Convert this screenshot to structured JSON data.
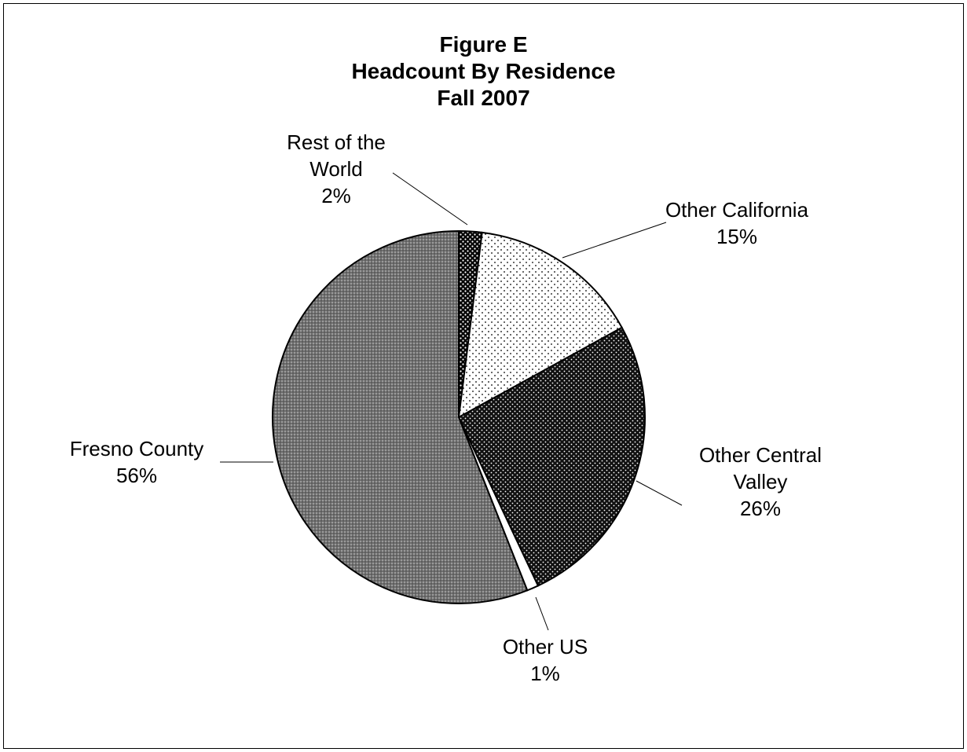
{
  "chart_data": {
    "type": "pie",
    "title": [
      "Figure E",
      "Headcount By Residence",
      "Fall 2007"
    ],
    "slices": [
      {
        "label": [
          "Rest of the",
          "World"
        ],
        "value_label": "2%",
        "value": 2,
        "pattern": "dots-on-black"
      },
      {
        "label": [
          "Other California"
        ],
        "value_label": "15%",
        "value": 15,
        "pattern": "sparse-dots"
      },
      {
        "label": [
          "Other Central",
          "Valley"
        ],
        "value_label": "26%",
        "value": 26,
        "pattern": "dense-dark"
      },
      {
        "label": [
          "Other US"
        ],
        "value_label": "1%",
        "value": 1,
        "pattern": "white"
      },
      {
        "label": [
          "Fresno County"
        ],
        "value_label": "56%",
        "value": 56,
        "pattern": "grey-check"
      }
    ],
    "start_angle_deg": 0,
    "direction": "clockwise",
    "legend": "none"
  }
}
